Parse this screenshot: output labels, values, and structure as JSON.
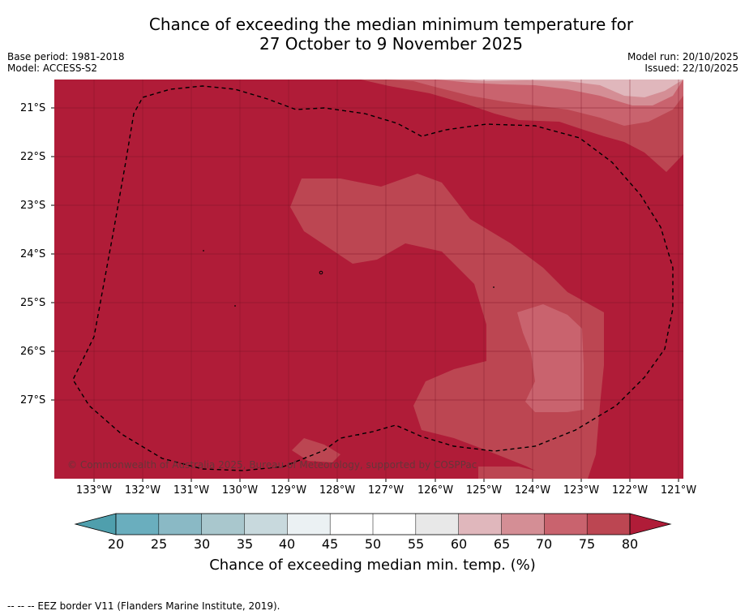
{
  "title": {
    "line1": "Chance of exceeding the median minimum temperature for",
    "line2": "27 October to 9 November 2025"
  },
  "meta": {
    "base_period": "Base period: 1981-2018",
    "model": "Model: ACCESS-S2",
    "model_run": "Model run: 20/10/2025",
    "issued": "Issued: 22/10/2025"
  },
  "axes": {
    "lat_labels": [
      "21°S",
      "22°S",
      "23°S",
      "24°S",
      "25°S",
      "26°S",
      "27°S"
    ],
    "lon_labels": [
      "133°W",
      "132°W",
      "131°W",
      "130°W",
      "129°W",
      "128°W",
      "127°W",
      "126°W",
      "125°W",
      "124°W",
      "123°W",
      "122°W",
      "121°W"
    ]
  },
  "copyright": "© Commonwealth of Australia 2025, Bureau of Meteorology, supported by COSPPac",
  "colorbar": {
    "label": "Chance of exceeding median min. temp. (%)",
    "ticks": [
      "20",
      "25",
      "30",
      "35",
      "40",
      "45",
      "50",
      "55",
      "60",
      "65",
      "70",
      "75",
      "80"
    ],
    "colors": [
      "#6aaebe",
      "#8ab9c5",
      "#a9c7cd",
      "#c8d9dd",
      "#ebf1f3",
      "#ffffff",
      "#ffffff",
      "#e8e8e8",
      "#e0b7bc",
      "#d48e95",
      "#c9636e",
      "#bc4652"
    ],
    "low_extend_color": "#4f9fad",
    "high_extend_color": "#b01c38"
  },
  "legend": {
    "eez_line": "--  --  -- EEZ border V11 (Flanders Marine Institute, 2019)."
  }
}
